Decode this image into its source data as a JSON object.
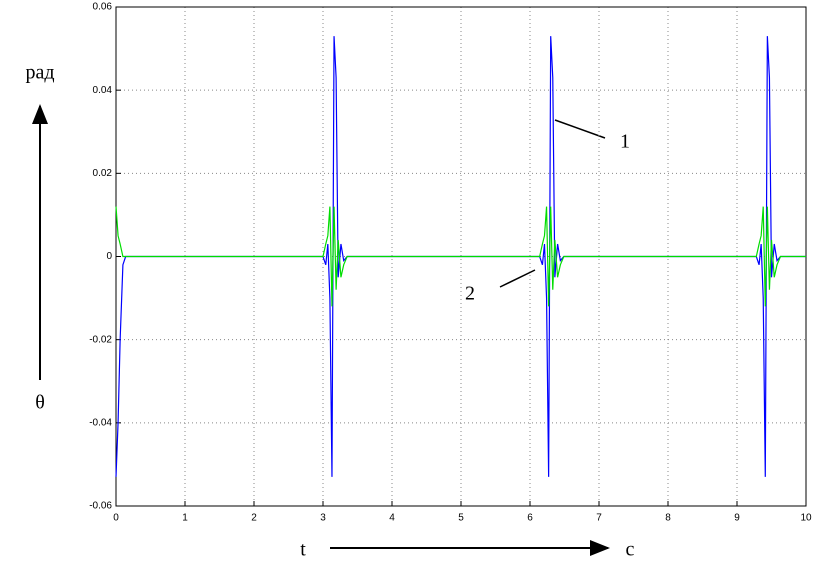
{
  "chart_data": {
    "type": "line",
    "x": [
      0,
      0.03,
      0.06,
      0.1,
      0.14,
      3.0,
      3.04,
      3.07,
      3.1,
      3.13,
      3.16,
      3.19,
      3.22,
      3.26,
      3.3,
      3.35,
      6.14,
      6.18,
      6.21,
      6.24,
      6.27,
      6.3,
      6.33,
      6.36,
      6.4,
      6.44,
      6.49,
      9.28,
      9.32,
      9.35,
      9.38,
      9.41,
      9.44,
      9.47,
      9.5,
      9.54,
      9.58,
      9.63,
      10
    ],
    "series": [
      {
        "name": "1",
        "color": "#0000ff",
        "values": [
          -0.053,
          -0.04,
          -0.02,
          -0.002,
          0,
          0,
          -0.002,
          0.003,
          -0.01,
          -0.053,
          0.053,
          0.043,
          -0.005,
          0.003,
          -0.001,
          0,
          0,
          -0.002,
          0.003,
          -0.01,
          -0.053,
          0.053,
          0.043,
          -0.005,
          0.003,
          -0.001,
          0,
          0,
          -0.002,
          0.003,
          -0.01,
          -0.053,
          0.053,
          0.043,
          -0.005,
          0.003,
          -0.001,
          0,
          0
        ]
      },
      {
        "name": "2",
        "color": "#00dd00",
        "values": [
          0.012,
          0.005,
          0.003,
          0,
          0,
          0,
          0.003,
          0.005,
          0.012,
          -0.012,
          0.012,
          -0.008,
          0.004,
          -0.005,
          -0.002,
          0,
          0,
          0.003,
          0.005,
          0.012,
          -0.012,
          0.012,
          -0.008,
          0.004,
          -0.005,
          -0.002,
          0,
          0,
          0.003,
          0.005,
          0.012,
          -0.012,
          0.012,
          -0.008,
          0.004,
          -0.005,
          -0.002,
          0,
          0
        ]
      }
    ],
    "xlim": [
      0,
      10
    ],
    "ylim": [
      -0.06,
      0.06
    ],
    "xticks": [
      0,
      1,
      2,
      3,
      4,
      5,
      6,
      7,
      8,
      9,
      10
    ],
    "yticks": [
      -0.06,
      -0.04,
      -0.02,
      0,
      0.02,
      0.04,
      0.06
    ],
    "grid": true,
    "ylabel": "рад",
    "ylabel_symbol": "θ",
    "xlabel": "t",
    "xlabel_unit": "c"
  }
}
